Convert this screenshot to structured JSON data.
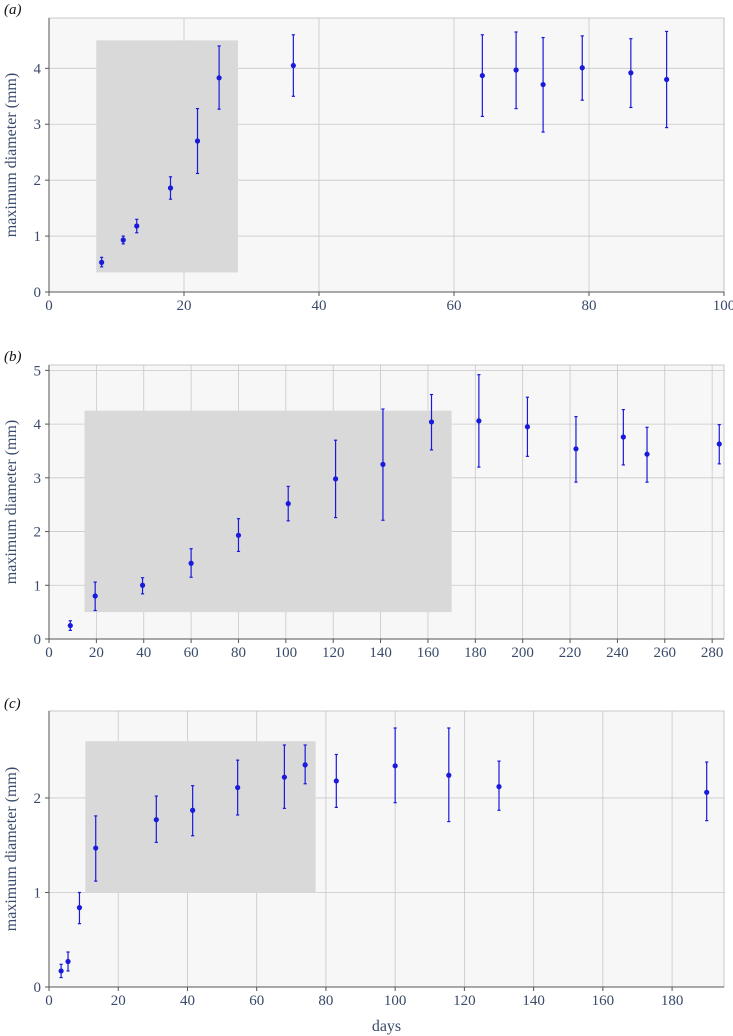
{
  "chart_data": [
    {
      "type": "scatter",
      "panel_label": "(a)",
      "ylabel": "maximum diameter (mm)",
      "xlabel": "",
      "xlim": [
        0,
        100
      ],
      "ylim": [
        0,
        4.9
      ],
      "xticks": [
        0,
        20,
        40,
        60,
        80,
        100
      ],
      "yticks": [
        0,
        1,
        2,
        3,
        4
      ],
      "grid": true,
      "shaded_region": {
        "x": [
          7,
          28
        ],
        "y": [
          0.35,
          4.5
        ]
      },
      "series": [
        {
          "color": "#1a1adb",
          "x": [
            7.8,
            11,
            13,
            18,
            22,
            25.2,
            36.2,
            64.2,
            69.2,
            73.2,
            79,
            86.2,
            91.5
          ],
          "y": [
            0.53,
            0.93,
            1.18,
            1.86,
            2.7,
            3.83,
            4.05,
            3.87,
            3.97,
            3.71,
            4.01,
            3.92,
            3.8
          ],
          "error_low": [
            0.45,
            0.86,
            1.06,
            1.66,
            2.12,
            3.27,
            3.5,
            3.14,
            3.28,
            2.86,
            3.43,
            3.3,
            2.94
          ],
          "error_high": [
            0.62,
            1.0,
            1.3,
            2.06,
            3.28,
            4.4,
            4.6,
            4.6,
            4.65,
            4.55,
            4.58,
            4.53,
            4.66
          ]
        }
      ]
    },
    {
      "type": "scatter",
      "panel_label": "(b)",
      "ylabel": "maximum diameter (mm)",
      "xlabel": "",
      "xlim": [
        0,
        285
      ],
      "ylim": [
        0,
        5.1
      ],
      "xticks": [
        0,
        20,
        40,
        60,
        80,
        100,
        120,
        140,
        160,
        180,
        200,
        220,
        240,
        260,
        280
      ],
      "yticks": [
        0,
        1,
        2,
        3,
        4,
        5
      ],
      "grid": true,
      "shaded_region": {
        "x": [
          15,
          170
        ],
        "y": [
          0.5,
          4.25
        ]
      },
      "series": [
        {
          "color": "#1a1adb",
          "x": [
            9,
            19.5,
            39.5,
            60,
            80,
            101,
            121,
            141,
            161.5,
            181.5,
            202,
            222.5,
            242.5,
            252.5,
            283
          ],
          "y": [
            0.25,
            0.8,
            1.0,
            1.41,
            1.93,
            2.52,
            2.98,
            3.25,
            4.04,
            4.06,
            3.95,
            3.54,
            3.76,
            3.44,
            3.63
          ],
          "error_low": [
            0.16,
            0.53,
            0.84,
            1.15,
            1.63,
            2.2,
            2.26,
            2.21,
            3.52,
            3.2,
            3.4,
            2.92,
            3.24,
            2.92,
            3.26
          ],
          "error_high": [
            0.34,
            1.06,
            1.14,
            1.68,
            2.24,
            2.84,
            3.7,
            4.28,
            4.55,
            4.92,
            4.5,
            4.14,
            4.27,
            3.94,
            3.99
          ]
        }
      ]
    },
    {
      "type": "scatter",
      "panel_label": "(c)",
      "ylabel": "maximum diameter (mm)",
      "xlabel": "days",
      "xlim": [
        0,
        195
      ],
      "ylim": [
        0,
        2.92
      ],
      "xticks": [
        0,
        20,
        40,
        60,
        80,
        100,
        120,
        140,
        160,
        180
      ],
      "yticks": [
        0,
        1,
        2
      ],
      "grid": true,
      "shaded_region": {
        "x": [
          10.5,
          77
        ],
        "y": [
          1.0,
          2.6
        ]
      },
      "series": [
        {
          "color": "#1a1adb",
          "x": [
            3.5,
            5.5,
            8.8,
            13.5,
            31,
            41.5,
            54.5,
            68,
            74,
            83,
            100,
            115.5,
            130,
            190
          ],
          "y": [
            0.17,
            0.27,
            0.84,
            1.47,
            1.77,
            1.87,
            2.11,
            2.22,
            2.35,
            2.18,
            2.34,
            2.24,
            2.12,
            2.06
          ],
          "error_low": [
            0.1,
            0.17,
            0.67,
            1.12,
            1.53,
            1.6,
            1.82,
            1.89,
            2.15,
            1.9,
            1.95,
            1.75,
            1.87,
            1.76
          ],
          "error_high": [
            0.24,
            0.37,
            1.0,
            1.81,
            2.02,
            2.13,
            2.4,
            2.56,
            2.56,
            2.46,
            2.74,
            2.74,
            2.39,
            2.38
          ]
        }
      ]
    }
  ]
}
